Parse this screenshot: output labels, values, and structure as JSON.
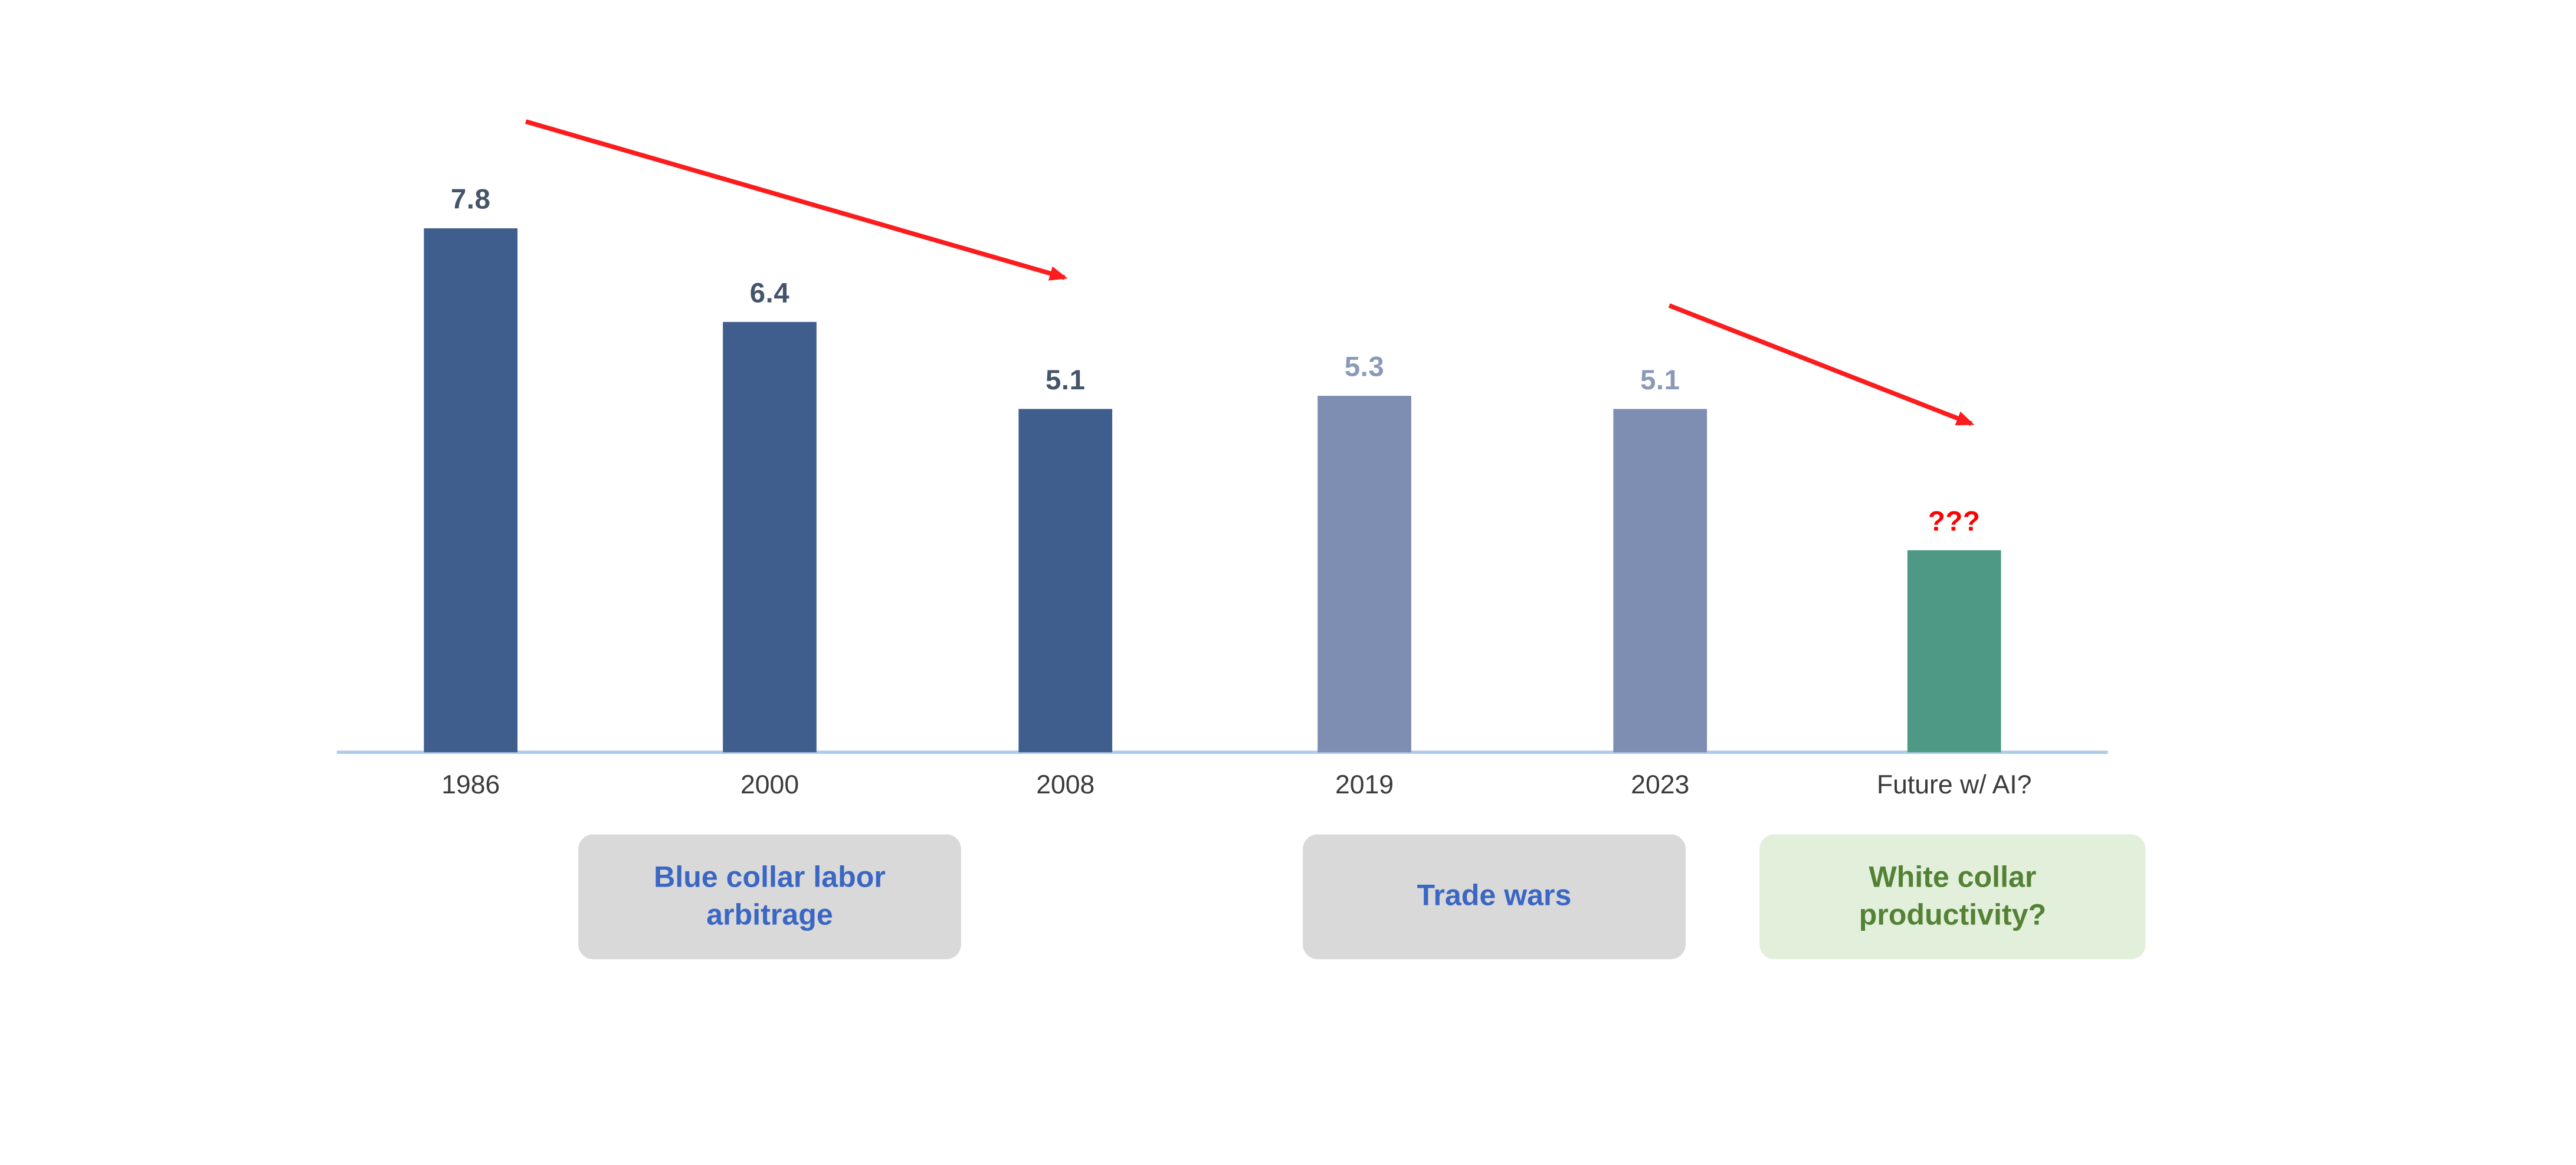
{
  "chart_data": {
    "type": "bar",
    "title": "",
    "xlabel": "",
    "ylabel": "",
    "ylim": [
      0,
      8
    ],
    "grid": false,
    "legend": false,
    "categories": [
      "1986",
      "2000",
      "2008",
      "2019",
      "2023",
      "Future w/ AI?"
    ],
    "values": [
      7.8,
      6.4,
      5.1,
      5.3,
      5.1,
      3.0
    ],
    "value_labels": [
      "7.8",
      "6.4",
      "5.1",
      "5.3",
      "5.1",
      "???"
    ],
    "bar_colors": [
      "#3F5E8E",
      "#3F5E8E",
      "#3F5E8E",
      "#7E8DB2",
      "#7E8DB2",
      "#4D9985"
    ],
    "value_label_colors": [
      "#44546A",
      "#44546A",
      "#44546A",
      "#8A99B8",
      "#8A99B8",
      "#FF0000"
    ],
    "annotation_color": "#FB1D1D",
    "annotations": [
      {
        "type": "arrow",
        "note": "downward trend arrow from above 1986 bar to above 2008 bar"
      },
      {
        "type": "arrow",
        "note": "downward trend arrow from above 2023 bar to above Future w/ AI? bar"
      }
    ]
  },
  "callouts": [
    {
      "label": "Blue collar labor arbitrage",
      "bg": "#D9D9D9",
      "text_color": "#3A66C4"
    },
    {
      "label": "Trade wars",
      "bg": "#D9D9D9",
      "text_color": "#3A66C4"
    },
    {
      "label": "White collar productivity?",
      "bg": "#E2EFDA",
      "text_color": "#548235"
    }
  ]
}
